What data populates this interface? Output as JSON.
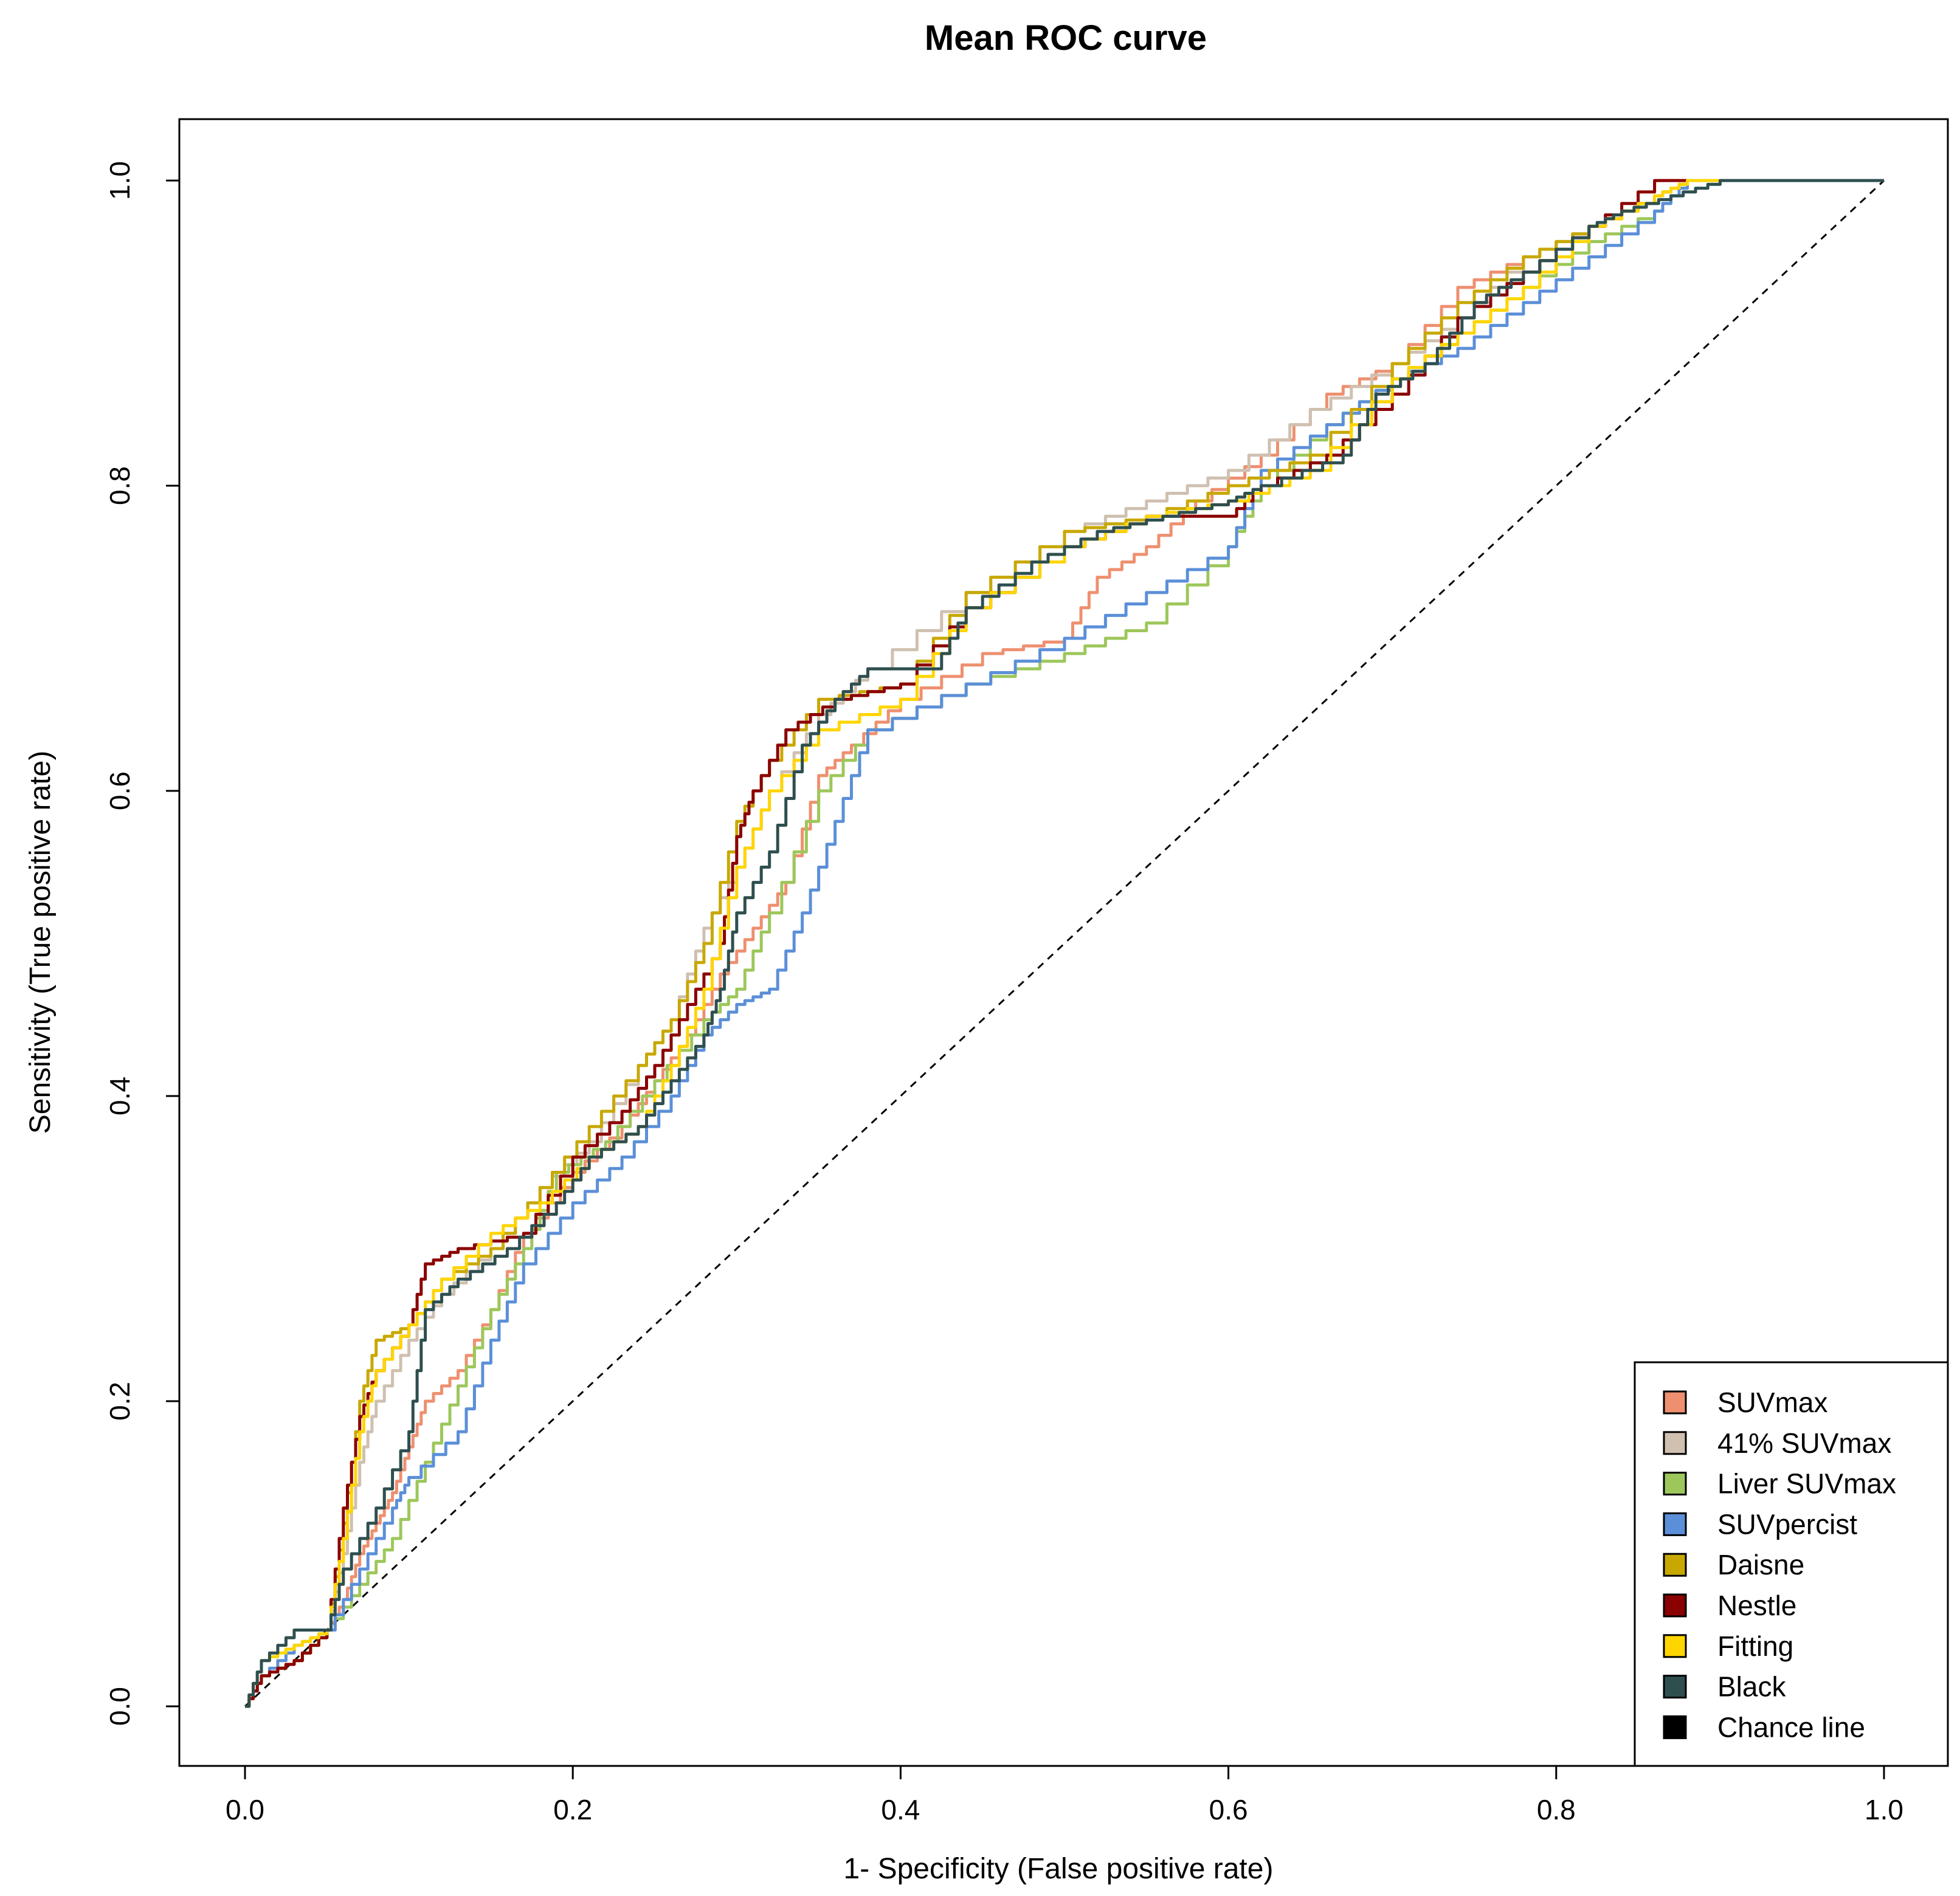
{
  "chart_data": {
    "type": "line",
    "title": "Mean ROC curve",
    "xlabel": "1- Specificity (False positive rate)",
    "ylabel": "Sensitivity (True positive rate)",
    "xlim": [
      0,
      1
    ],
    "ylim": [
      0,
      1
    ],
    "xticks": [
      "0.0",
      "0.2",
      "0.4",
      "0.6",
      "0.8",
      "1.0"
    ],
    "yticks": [
      "0.0",
      "0.2",
      "0.4",
      "0.6",
      "0.8",
      "1.0"
    ],
    "legend_position": "bottom-right",
    "series": [
      {
        "name": "SUVmax",
        "color": "#EE9070",
        "points": [
          [
            0,
            0
          ],
          [
            0.01,
            0.02
          ],
          [
            0.03,
            0.03
          ],
          [
            0.05,
            0.05
          ],
          [
            0.06,
            0.07
          ],
          [
            0.07,
            0.1
          ],
          [
            0.08,
            0.12
          ],
          [
            0.09,
            0.14
          ],
          [
            0.1,
            0.17
          ],
          [
            0.11,
            0.2
          ],
          [
            0.13,
            0.22
          ],
          [
            0.15,
            0.26
          ],
          [
            0.17,
            0.31
          ],
          [
            0.2,
            0.35
          ],
          [
            0.23,
            0.38
          ],
          [
            0.25,
            0.41
          ],
          [
            0.27,
            0.44
          ],
          [
            0.29,
            0.48
          ],
          [
            0.31,
            0.51
          ],
          [
            0.33,
            0.54
          ],
          [
            0.35,
            0.61
          ],
          [
            0.37,
            0.63
          ],
          [
            0.4,
            0.66
          ],
          [
            0.45,
            0.69
          ],
          [
            0.5,
            0.7
          ],
          [
            0.52,
            0.74
          ],
          [
            0.55,
            0.76
          ],
          [
            0.58,
            0.79
          ],
          [
            0.62,
            0.82
          ],
          [
            0.66,
            0.86
          ],
          [
            0.7,
            0.88
          ],
          [
            0.74,
            0.93
          ],
          [
            0.78,
            0.95
          ],
          [
            0.82,
            0.97
          ],
          [
            0.86,
            0.99
          ],
          [
            0.88,
            1
          ],
          [
            1,
            1
          ]
        ]
      },
      {
        "name": "41% SUVmax",
        "color": "#CFC0B0",
        "points": [
          [
            0,
            0
          ],
          [
            0.01,
            0.02
          ],
          [
            0.03,
            0.03
          ],
          [
            0.05,
            0.05
          ],
          [
            0.06,
            0.1
          ],
          [
            0.07,
            0.16
          ],
          [
            0.08,
            0.2
          ],
          [
            0.1,
            0.24
          ],
          [
            0.12,
            0.27
          ],
          [
            0.15,
            0.3
          ],
          [
            0.18,
            0.34
          ],
          [
            0.21,
            0.37
          ],
          [
            0.24,
            0.42
          ],
          [
            0.26,
            0.45
          ],
          [
            0.28,
            0.51
          ],
          [
            0.3,
            0.55
          ],
          [
            0.32,
            0.6
          ],
          [
            0.35,
            0.65
          ],
          [
            0.38,
            0.68
          ],
          [
            0.44,
            0.73
          ],
          [
            0.5,
            0.77
          ],
          [
            0.55,
            0.79
          ],
          [
            0.6,
            0.81
          ],
          [
            0.65,
            0.85
          ],
          [
            0.7,
            0.88
          ],
          [
            0.74,
            0.91
          ],
          [
            0.78,
            0.95
          ],
          [
            0.82,
            0.97
          ],
          [
            0.86,
            0.99
          ],
          [
            0.88,
            1
          ],
          [
            1,
            1
          ]
        ]
      },
      {
        "name": "Liver SUVmax",
        "color": "#9DC75B",
        "points": [
          [
            0,
            0
          ],
          [
            0.01,
            0.02
          ],
          [
            0.03,
            0.03
          ],
          [
            0.05,
            0.05
          ],
          [
            0.07,
            0.08
          ],
          [
            0.09,
            0.11
          ],
          [
            0.11,
            0.16
          ],
          [
            0.13,
            0.21
          ],
          [
            0.15,
            0.26
          ],
          [
            0.17,
            0.3
          ],
          [
            0.19,
            0.35
          ],
          [
            0.22,
            0.37
          ],
          [
            0.25,
            0.41
          ],
          [
            0.28,
            0.45
          ],
          [
            0.3,
            0.47
          ],
          [
            0.32,
            0.52
          ],
          [
            0.35,
            0.6
          ],
          [
            0.38,
            0.64
          ],
          [
            0.44,
            0.67
          ],
          [
            0.5,
            0.69
          ],
          [
            0.55,
            0.71
          ],
          [
            0.6,
            0.76
          ],
          [
            0.62,
            0.8
          ],
          [
            0.66,
            0.84
          ],
          [
            0.7,
            0.87
          ],
          [
            0.74,
            0.9
          ],
          [
            0.78,
            0.93
          ],
          [
            0.82,
            0.96
          ],
          [
            0.86,
            0.98
          ],
          [
            0.88,
            1
          ],
          [
            1,
            1
          ]
        ]
      },
      {
        "name": "SUVpercist",
        "color": "#5B8FD8",
        "points": [
          [
            0,
            0
          ],
          [
            0.01,
            0.02
          ],
          [
            0.03,
            0.04
          ],
          [
            0.05,
            0.05
          ],
          [
            0.07,
            0.09
          ],
          [
            0.09,
            0.13
          ],
          [
            0.1,
            0.15
          ],
          [
            0.13,
            0.18
          ],
          [
            0.15,
            0.24
          ],
          [
            0.17,
            0.29
          ],
          [
            0.2,
            0.33
          ],
          [
            0.23,
            0.36
          ],
          [
            0.26,
            0.4
          ],
          [
            0.28,
            0.44
          ],
          [
            0.3,
            0.46
          ],
          [
            0.32,
            0.47
          ],
          [
            0.34,
            0.52
          ],
          [
            0.36,
            0.58
          ],
          [
            0.38,
            0.64
          ],
          [
            0.44,
            0.67
          ],
          [
            0.5,
            0.7
          ],
          [
            0.55,
            0.73
          ],
          [
            0.6,
            0.76
          ],
          [
            0.62,
            0.81
          ],
          [
            0.66,
            0.84
          ],
          [
            0.7,
            0.87
          ],
          [
            0.74,
            0.89
          ],
          [
            0.78,
            0.92
          ],
          [
            0.82,
            0.95
          ],
          [
            0.86,
            0.98
          ],
          [
            0.88,
            1
          ],
          [
            1,
            1
          ]
        ]
      },
      {
        "name": "Daisne",
        "color": "#C8A800",
        "points": [
          [
            0,
            0
          ],
          [
            0.01,
            0.02
          ],
          [
            0.03,
            0.03
          ],
          [
            0.05,
            0.05
          ],
          [
            0.06,
            0.12
          ],
          [
            0.07,
            0.2
          ],
          [
            0.08,
            0.24
          ],
          [
            0.1,
            0.25
          ],
          [
            0.12,
            0.28
          ],
          [
            0.15,
            0.3
          ],
          [
            0.18,
            0.34
          ],
          [
            0.21,
            0.38
          ],
          [
            0.24,
            0.42
          ],
          [
            0.26,
            0.45
          ],
          [
            0.28,
            0.5
          ],
          [
            0.3,
            0.58
          ],
          [
            0.32,
            0.62
          ],
          [
            0.35,
            0.66
          ],
          [
            0.4,
            0.67
          ],
          [
            0.44,
            0.73
          ],
          [
            0.5,
            0.77
          ],
          [
            0.55,
            0.78
          ],
          [
            0.6,
            0.8
          ],
          [
            0.65,
            0.82
          ],
          [
            0.7,
            0.88
          ],
          [
            0.74,
            0.92
          ],
          [
            0.78,
            0.95
          ],
          [
            0.82,
            0.97
          ],
          [
            0.86,
            0.99
          ],
          [
            0.88,
            1
          ],
          [
            1,
            1
          ]
        ]
      },
      {
        "name": "Nestle",
        "color": "#8B0000",
        "points": [
          [
            0,
            0
          ],
          [
            0.01,
            0.02
          ],
          [
            0.03,
            0.03
          ],
          [
            0.05,
            0.05
          ],
          [
            0.06,
            0.13
          ],
          [
            0.07,
            0.19
          ],
          [
            0.08,
            0.22
          ],
          [
            0.1,
            0.25
          ],
          [
            0.11,
            0.29
          ],
          [
            0.13,
            0.3
          ],
          [
            0.17,
            0.31
          ],
          [
            0.2,
            0.36
          ],
          [
            0.23,
            0.39
          ],
          [
            0.25,
            0.42
          ],
          [
            0.27,
            0.46
          ],
          [
            0.29,
            0.5
          ],
          [
            0.3,
            0.57
          ],
          [
            0.31,
            0.6
          ],
          [
            0.33,
            0.64
          ],
          [
            0.36,
            0.66
          ],
          [
            0.4,
            0.67
          ],
          [
            0.44,
            0.72
          ],
          [
            0.5,
            0.76
          ],
          [
            0.55,
            0.78
          ],
          [
            0.6,
            0.78
          ],
          [
            0.62,
            0.8
          ],
          [
            0.66,
            0.82
          ],
          [
            0.7,
            0.86
          ],
          [
            0.74,
            0.91
          ],
          [
            0.78,
            0.94
          ],
          [
            0.82,
            0.97
          ],
          [
            0.86,
            1
          ],
          [
            1,
            1
          ]
        ]
      },
      {
        "name": "Fitting",
        "color": "#FFD500",
        "points": [
          [
            0,
            0
          ],
          [
            0.01,
            0.03
          ],
          [
            0.03,
            0.04
          ],
          [
            0.05,
            0.05
          ],
          [
            0.06,
            0.11
          ],
          [
            0.07,
            0.18
          ],
          [
            0.08,
            0.22
          ],
          [
            0.1,
            0.25
          ],
          [
            0.12,
            0.28
          ],
          [
            0.15,
            0.31
          ],
          [
            0.18,
            0.33
          ],
          [
            0.21,
            0.36
          ],
          [
            0.24,
            0.38
          ],
          [
            0.26,
            0.42
          ],
          [
            0.28,
            0.47
          ],
          [
            0.3,
            0.55
          ],
          [
            0.32,
            0.6
          ],
          [
            0.35,
            0.64
          ],
          [
            0.4,
            0.66
          ],
          [
            0.44,
            0.72
          ],
          [
            0.5,
            0.76
          ],
          [
            0.55,
            0.78
          ],
          [
            0.6,
            0.79
          ],
          [
            0.65,
            0.81
          ],
          [
            0.7,
            0.87
          ],
          [
            0.74,
            0.9
          ],
          [
            0.78,
            0.93
          ],
          [
            0.82,
            0.97
          ],
          [
            0.86,
            0.99
          ],
          [
            0.88,
            1
          ],
          [
            1,
            1
          ]
        ]
      },
      {
        "name": "Black",
        "color": "#2F4F4F",
        "points": [
          [
            0,
            0
          ],
          [
            0.01,
            0.03
          ],
          [
            0.03,
            0.05
          ],
          [
            0.05,
            0.05
          ],
          [
            0.06,
            0.09
          ],
          [
            0.08,
            0.13
          ],
          [
            0.1,
            0.18
          ],
          [
            0.11,
            0.26
          ],
          [
            0.13,
            0.28
          ],
          [
            0.16,
            0.3
          ],
          [
            0.19,
            0.33
          ],
          [
            0.21,
            0.36
          ],
          [
            0.24,
            0.38
          ],
          [
            0.26,
            0.41
          ],
          [
            0.28,
            0.44
          ],
          [
            0.29,
            0.47
          ],
          [
            0.3,
            0.52
          ],
          [
            0.32,
            0.56
          ],
          [
            0.34,
            0.63
          ],
          [
            0.36,
            0.66
          ],
          [
            0.38,
            0.68
          ],
          [
            0.42,
            0.68
          ],
          [
            0.44,
            0.72
          ],
          [
            0.48,
            0.75
          ],
          [
            0.52,
            0.77
          ],
          [
            0.56,
            0.78
          ],
          [
            0.6,
            0.79
          ],
          [
            0.62,
            0.8
          ],
          [
            0.67,
            0.82
          ],
          [
            0.69,
            0.86
          ],
          [
            0.72,
            0.88
          ],
          [
            0.75,
            0.92
          ],
          [
            0.78,
            0.94
          ],
          [
            0.82,
            0.97
          ],
          [
            0.84,
            0.98
          ],
          [
            0.87,
            0.99
          ],
          [
            0.9,
            1
          ],
          [
            1,
            1
          ]
        ]
      },
      {
        "name": "Chance line",
        "color": "#000000",
        "dashed": true,
        "points": [
          [
            0,
            0
          ],
          [
            1,
            1
          ]
        ]
      }
    ]
  }
}
